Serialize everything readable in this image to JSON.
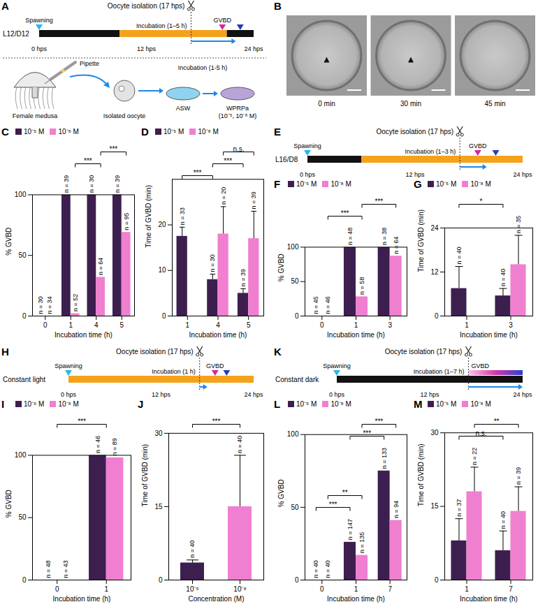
{
  "chart_data": [
    {
      "panel": "C",
      "type": "bar",
      "categories": [
        "0",
        "1",
        "4",
        "5"
      ],
      "xlabel": "Incubation time (h)",
      "ylabel": "% GVBD",
      "ylim": [
        0,
        100
      ],
      "yticks": [
        0,
        50,
        100
      ],
      "legend": "top",
      "series": [
        {
          "name": "10⁻⁵ M",
          "color": "#3d1f4f",
          "values": [
            0,
            100,
            100,
            100
          ],
          "n_labels": [
            "n = 30",
            "n = 39",
            "n = 30",
            "n = 39"
          ]
        },
        {
          "name": "10⁻⁸ M",
          "color": "#f07fd0",
          "values": [
            0,
            2,
            32,
            69
          ],
          "n_labels": [
            "n = 34",
            "n = 52",
            "n = 64",
            "n = 95"
          ]
        }
      ],
      "comparisons": [
        {
          "from": "1",
          "to": "4",
          "series": "10⁻⁸ M",
          "label": "***"
        },
        {
          "from": "4",
          "to": "5",
          "series": "10⁻⁸ M",
          "label": "***"
        }
      ]
    },
    {
      "panel": "D",
      "type": "bar",
      "categories": [
        "1",
        "4",
        "5"
      ],
      "xlabel": "Incubation time (h)",
      "ylabel": "Time of GVBD (min)",
      "ylim": [
        0,
        30
      ],
      "yticks": [
        0,
        10,
        20
      ],
      "legend": "top",
      "series": [
        {
          "name": "10⁻⁵ M",
          "color": "#3d1f4f",
          "values": [
            17.5,
            8,
            5
          ],
          "errors": [
            2,
            1.2,
            1
          ],
          "n_labels": [
            "n = 33",
            "n = 30",
            "n = 39"
          ]
        },
        {
          "name": "10⁻⁸ M",
          "color": "#f07fd0",
          "values": [
            null,
            18,
            17
          ],
          "errors": [
            null,
            6,
            6
          ],
          "n_labels": [
            null,
            "n = 20",
            "n = 39"
          ]
        }
      ],
      "comparisons": [
        {
          "from": "1",
          "to": "4",
          "series": "10⁻⁵ M",
          "label": "***"
        },
        {
          "from": "4",
          "to": "5",
          "series": "10⁻⁵ M",
          "label": "***"
        },
        {
          "from": "4",
          "to": "5",
          "series": "10⁻⁸ M",
          "label": "n.s."
        }
      ]
    },
    {
      "panel": "F",
      "type": "bar",
      "categories": [
        "0",
        "1",
        "3"
      ],
      "xlabel": "Incubation time (h)",
      "ylabel": "% GVBD",
      "ylim": [
        0,
        100
      ],
      "yticks": [
        0,
        50,
        100
      ],
      "legend": "top",
      "series": [
        {
          "name": "10⁻⁵ M",
          "color": "#3d1f4f",
          "values": [
            0,
            100,
            100
          ],
          "n_labels": [
            "n = 45",
            "n = 48",
            "n = 38"
          ]
        },
        {
          "name": "10⁻⁸ M",
          "color": "#f07fd0",
          "values": [
            0,
            28,
            87
          ],
          "n_labels": [
            "n = 46",
            "n = 58",
            "n = 64"
          ]
        }
      ],
      "comparisons": [
        {
          "from": "0",
          "to": "1",
          "series": "10⁻⁸ M",
          "label": "***"
        },
        {
          "from": "1",
          "to": "3",
          "series": "10⁻⁸ M",
          "label": "***"
        }
      ]
    },
    {
      "panel": "G",
      "type": "bar",
      "categories": [
        "1",
        "3"
      ],
      "xlabel": "Incubation time (h)",
      "ylabel": "Time of GVBD (min)",
      "ylim": [
        0,
        24
      ],
      "yticks": [
        0,
        12,
        24
      ],
      "legend": "top",
      "series": [
        {
          "name": "10⁻⁵ M",
          "color": "#3d1f4f",
          "values": [
            7.5,
            5.5
          ],
          "errors": [
            6,
            2
          ],
          "n_labels": [
            "n = 40",
            "n = 40"
          ]
        },
        {
          "name": "10⁻⁸ M",
          "color": "#f07fd0",
          "values": [
            null,
            14
          ],
          "errors": [
            null,
            8
          ],
          "n_labels": [
            null,
            "n = 35"
          ]
        }
      ],
      "comparisons": [
        {
          "from": "1",
          "to": "3",
          "series": "10⁻⁵ M",
          "label": "*"
        }
      ]
    },
    {
      "panel": "I",
      "type": "bar",
      "categories": [
        "0",
        "1"
      ],
      "xlabel": "Incubation time (h)",
      "ylabel": "% GVBD",
      "ylim": [
        0,
        100
      ],
      "yticks": [
        0,
        50,
        100
      ],
      "legend": "top",
      "series": [
        {
          "name": "10⁻⁵ M",
          "color": "#3d1f4f",
          "values": [
            0,
            100
          ],
          "n_labels": [
            "n = 48",
            "n = 46"
          ]
        },
        {
          "name": "10⁻⁸ M",
          "color": "#f07fd0",
          "values": [
            0,
            98
          ],
          "n_labels": [
            "n = 43",
            "n = 89"
          ]
        }
      ],
      "comparisons": [
        {
          "from": "0",
          "to": "1",
          "label": "***"
        }
      ]
    },
    {
      "panel": "J",
      "type": "bar",
      "categories": [
        "10⁻⁵",
        "10⁻⁸"
      ],
      "xlabel": "Concentration (M)",
      "ylabel": "Time of GVBD (min)",
      "ylim": [
        0,
        30
      ],
      "yticks": [
        0,
        15,
        30
      ],
      "values": [
        3.5,
        15
      ],
      "errors": [
        0.6,
        10.5
      ],
      "colors": [
        "#3d1f4f",
        "#f07fd0"
      ],
      "n_labels": [
        "n = 40",
        "n = 40"
      ],
      "comparisons": [
        {
          "from": "10⁻⁵",
          "to": "10⁻⁸",
          "label": "***"
        }
      ]
    },
    {
      "panel": "L",
      "type": "bar",
      "categories": [
        "0",
        "1",
        "7"
      ],
      "xlabel": "Incubation time (h)",
      "ylabel": "% GVBD",
      "ylim": [
        0,
        100
      ],
      "yticks": [
        0,
        50,
        100
      ],
      "legend": "top",
      "series": [
        {
          "name": "10⁻⁵ M",
          "color": "#3d1f4f",
          "values": [
            0,
            26,
            75
          ],
          "n_labels": [
            "n = 40",
            "n = 147",
            "n = 133"
          ]
        },
        {
          "name": "10⁻⁸ M",
          "color": "#f07fd0",
          "values": [
            0,
            17,
            41
          ],
          "n_labels": [
            "n = 40",
            "n = 135",
            "n = 94"
          ]
        }
      ],
      "comparisons": [
        {
          "from": "0",
          "to": "1",
          "series": "10⁻⁵ M",
          "label": "***"
        },
        {
          "from": "0",
          "to": "1",
          "series": "10⁻⁸ M",
          "label": "**"
        },
        {
          "from": "1",
          "to": "7",
          "series": "10⁻⁵ M",
          "label": "***"
        },
        {
          "from": "1",
          "to": "7",
          "series": "10⁻⁸ M",
          "label": "***"
        }
      ]
    },
    {
      "panel": "M",
      "type": "bar",
      "categories": [
        "1",
        "7"
      ],
      "xlabel": "Incubation time (h)",
      "ylabel": "Time of GVBD (min)",
      "ylim": [
        0,
        30
      ],
      "yticks": [
        0,
        15,
        30
      ],
      "legend": "top",
      "series": [
        {
          "name": "10⁻⁵ M",
          "color": "#3d1f4f",
          "values": [
            8,
            6
          ],
          "errors": [
            4.5,
            4
          ],
          "n_labels": [
            "n = 37",
            "n = 40"
          ]
        },
        {
          "name": "10⁻⁸ M",
          "color": "#f07fd0",
          "values": [
            18,
            14
          ],
          "errors": [
            5,
            5
          ],
          "n_labels": [
            "n = 22",
            "n = 39"
          ]
        }
      ],
      "comparisons": [
        {
          "from": "1",
          "to": "7",
          "series": "10⁻⁵ M",
          "label": "n.s."
        },
        {
          "from": "1",
          "to": "7",
          "series": "10⁻⁸ M",
          "label": "**"
        }
      ]
    }
  ],
  "diagrams": [
    {
      "type": "timeline",
      "panel": "A",
      "regime": "L12/D12",
      "segments": [
        {
          "start": 0,
          "end": 9,
          "phase": "dark"
        },
        {
          "start": 9,
          "end": 21,
          "phase": "light"
        },
        {
          "start": 21,
          "end": 24,
          "phase": "dark"
        }
      ],
      "xlim": [
        0,
        24
      ],
      "xticks": [
        {
          "value": 0,
          "label": "0 hps"
        },
        {
          "value": 12,
          "label": "12 hps"
        },
        {
          "value": 24,
          "label": "24 hps"
        }
      ],
      "spawning": {
        "label": "Spawning",
        "at": 0
      },
      "isolation": {
        "label": "Oocyte isolation (17 hps)",
        "at": 17
      },
      "incubation": {
        "label": "Incubation (1–5 h)",
        "from": 17,
        "to": 22
      },
      "gvbd": {
        "label": "GVBD",
        "at": 20.5
      },
      "blue_marker": 22.5
    },
    {
      "type": "schematic",
      "labels": {
        "pipette": "Pipette",
        "medusa": "Female medusa",
        "oocyte": "Isolated oocyte",
        "incubation": "Incubation (1-5 h)",
        "asw": "ASW",
        "wprpa": "WPRPa (10⁻⁵, 10⁻⁸ M)"
      }
    },
    {
      "type": "images",
      "panel": "B",
      "frames": [
        {
          "label": "0 min",
          "arrowhead": true
        },
        {
          "label": "30 min",
          "arrowhead": true
        },
        {
          "label": "45 min",
          "arrowhead": false
        }
      ]
    },
    {
      "type": "timeline",
      "panel": "E",
      "regime": "L16/D8",
      "segments": [
        {
          "start": 0,
          "end": 6,
          "phase": "dark"
        },
        {
          "start": 6,
          "end": 24,
          "phase": "light"
        }
      ],
      "xlim": [
        0,
        24
      ],
      "xticks": [
        {
          "value": 0,
          "label": "0 hps"
        },
        {
          "value": 12,
          "label": "12 hps"
        },
        {
          "value": 24,
          "label": "24 hps"
        }
      ],
      "spawning": {
        "label": "Spawning",
        "at": 0
      },
      "isolation": {
        "label": "Oocyte isolation (17 hps)",
        "at": 17
      },
      "incubation": {
        "label": "Incubation (1–3 h)",
        "from": 17,
        "to": 20
      },
      "gvbd": {
        "label": "GVBD",
        "at": 19
      },
      "blue_marker": 21
    },
    {
      "type": "timeline",
      "panel": "H",
      "regime": "Constant light",
      "segments": [
        {
          "start": 0,
          "end": 24,
          "phase": "light"
        }
      ],
      "xlim": [
        0,
        24
      ],
      "xticks": [
        {
          "value": 0,
          "label": "0 hps"
        },
        {
          "value": 12,
          "label": "12 hps"
        },
        {
          "value": 24,
          "label": "24 hps"
        }
      ],
      "spawning": {
        "label": "Spawning",
        "at": 0
      },
      "isolation": {
        "label": "Oocyte isolation (17 hps)",
        "at": 17
      },
      "incubation": {
        "label": "Incubation (1 h)",
        "from": 17,
        "to": 18
      },
      "gvbd": {
        "label": "GVBD",
        "at": 19
      },
      "blue_marker": 20.5
    },
    {
      "type": "timeline",
      "panel": "K",
      "regime": "Constant dark",
      "segments": [
        {
          "start": 0,
          "end": 24,
          "phase": "dark"
        }
      ],
      "xlim": [
        0,
        24
      ],
      "xticks": [
        {
          "value": 0,
          "label": "0 hps"
        },
        {
          "value": 12,
          "label": "12 hps"
        },
        {
          "value": 24,
          "label": "24 hps"
        }
      ],
      "spawning": {
        "label": "Spawning",
        "at": 0
      },
      "isolation": {
        "label": "Oocyte isolation (17 hps)",
        "at": 17
      },
      "incubation": {
        "label": "Incubation (1–7 h)",
        "from": 17,
        "to": 24
      },
      "gvbd": {
        "label": "GVBD",
        "from": 17,
        "to": 24
      }
    }
  ]
}
